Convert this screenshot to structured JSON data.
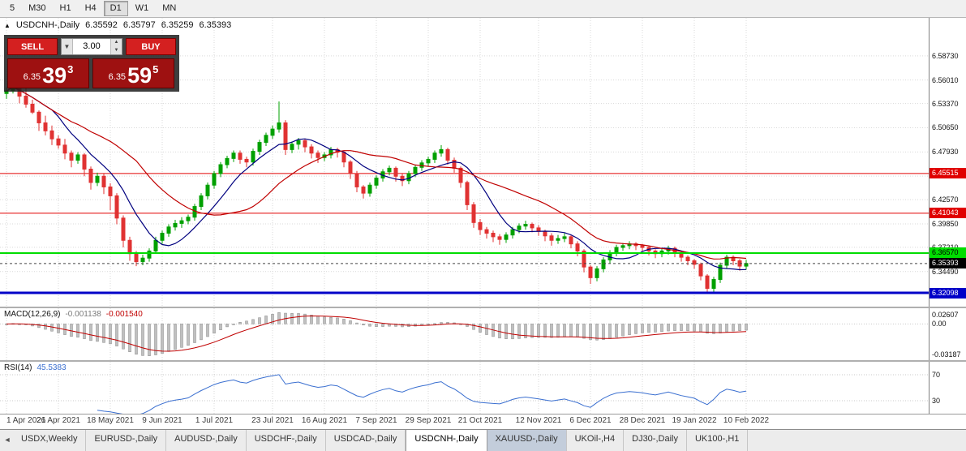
{
  "toolbar": {
    "timeframes": [
      "5",
      "M30",
      "H1",
      "H4",
      "D1",
      "W1",
      "MN"
    ],
    "active": "D1"
  },
  "icons": {
    "chart_marker": "▲",
    "dropdown_down": "▼",
    "spin_up": "▲",
    "spin_down": "▼",
    "tab_scroll_left": "◄"
  },
  "symbol_header": {
    "symbol": "USDCNH-,Daily",
    "open": "6.35592",
    "high": "6.35797",
    "low": "6.35259",
    "close": "6.35393"
  },
  "trade_panel": {
    "sell_label": "SELL",
    "buy_label": "BUY",
    "volume": "3.00",
    "bid_prefix": "6.35",
    "bid_main": "39",
    "bid_sup": "3",
    "ask_prefix": "6.35",
    "ask_main": "59",
    "ask_sup": "5"
  },
  "indicators": {
    "macd": {
      "title": "MACD(12,26,9)",
      "value_main": "-0.001138",
      "value_signal": "-0.001540",
      "axis_top": "0.02607",
      "axis_zero": "0.00",
      "axis_bottom": "-0.03187"
    },
    "rsi": {
      "title": "RSI(14)",
      "value": "45.5383",
      "level_top": "70",
      "level_bottom": "30"
    }
  },
  "tabs": {
    "active_index": 5,
    "highlighted_index": 6,
    "items": [
      {
        "label": "USDX,Weekly"
      },
      {
        "label": "EURUSD-,Daily"
      },
      {
        "label": "AUDUSD-,Daily"
      },
      {
        "label": "USDCHF-,Daily"
      },
      {
        "label": "USDCAD-,Daily"
      },
      {
        "label": "USDCNH-,Daily"
      },
      {
        "label": "XAUUSD-,Daily"
      },
      {
        "label": "UKOil-,H4"
      },
      {
        "label": "DJ30-,Daily"
      },
      {
        "label": "UK100-,H1"
      }
    ]
  },
  "chart_data": {
    "type": "candlestick",
    "symbol": "USDCNH",
    "timeframe": "Daily",
    "price_range": [
      6.3055,
      6.63
    ],
    "y_ticks": [
      "6.58730",
      "6.56010",
      "6.53370",
      "6.50650",
      "6.47930",
      "6.42570",
      "6.39850",
      "6.37210",
      "6.34490"
    ],
    "y_grid_extra": [
      6.4521
    ],
    "x_labels": [
      {
        "i": 0,
        "t": "1 Apr 2021"
      },
      {
        "i": 8,
        "t": "26 Apr 2021"
      },
      {
        "i": 16,
        "t": "18 May 2021"
      },
      {
        "i": 24,
        "t": "9 Jun 2021"
      },
      {
        "i": 32,
        "t": "1 Jul 2021"
      },
      {
        "i": 41,
        "t": "23 Jul 2021"
      },
      {
        "i": 49,
        "t": "16 Aug 2021"
      },
      {
        "i": 57,
        "t": "7 Sep 2021"
      },
      {
        "i": 65,
        "t": "29 Sep 2021"
      },
      {
        "i": 73,
        "t": "21 Oct 2021"
      },
      {
        "i": 82,
        "t": "12 Nov 2021"
      },
      {
        "i": 90,
        "t": "6 Dec 2021"
      },
      {
        "i": 98,
        "t": "28 Dec 2021"
      },
      {
        "i": 106,
        "t": "19 Jan 2022"
      },
      {
        "i": 114,
        "t": "10 Feb 2022"
      }
    ],
    "hlines": [
      {
        "value": 6.45515,
        "label": "6.45515",
        "color": "#e00000",
        "width": 1,
        "badge_bg": "#e00000",
        "badge_fg": "#ffffff"
      },
      {
        "value": 6.41043,
        "label": "6.41043",
        "color": "#e00000",
        "width": 1,
        "badge_bg": "#e00000",
        "badge_fg": "#ffffff"
      },
      {
        "value": 6.3657,
        "label": "6.36570",
        "color": "#00dd00",
        "width": 2,
        "badge_bg": "#00dd00",
        "badge_fg": "#000000"
      },
      {
        "value": 6.32098,
        "label": "6.32098",
        "color": "#0000c8",
        "width": 3,
        "badge_bg": "#0000c8",
        "badge_fg": "#ffffff"
      }
    ],
    "current_price": {
      "value": 6.35393,
      "label": "6.35393",
      "badge_bg": "#000000",
      "badge_fg": "#ffffff"
    },
    "ma_lines": [
      {
        "period": 8,
        "color": "#00007f"
      },
      {
        "period": 21,
        "color": "#c00000"
      }
    ],
    "indicators": {
      "macd": {
        "fast": 12,
        "slow": 26,
        "signal": 9
      },
      "rsi": {
        "period": 14,
        "levels": [
          70,
          30
        ]
      }
    },
    "colors": {
      "up": "#00a000",
      "down": "#e03232",
      "grid": "#d9d9d9",
      "macd_hist": "#c0c0c0",
      "macd_hist_stroke": "#8a8a8a",
      "macd_signal": "#c00000",
      "rsi": "#3a6fd0"
    },
    "candles": [
      [
        6.545,
        6.552,
        6.539,
        6.548
      ],
      [
        6.548,
        6.563,
        6.545,
        6.556
      ],
      [
        6.556,
        6.559,
        6.534,
        6.542
      ],
      [
        6.542,
        6.551,
        6.529,
        6.533
      ],
      [
        6.533,
        6.538,
        6.522,
        6.524
      ],
      [
        6.524,
        6.526,
        6.503,
        6.512
      ],
      [
        6.512,
        6.52,
        6.498,
        6.503
      ],
      [
        6.503,
        6.509,
        6.487,
        6.494
      ],
      [
        6.494,
        6.498,
        6.483,
        6.487
      ],
      [
        6.487,
        6.494,
        6.471,
        6.478
      ],
      [
        6.478,
        6.481,
        6.462,
        6.47
      ],
      [
        6.47,
        6.479,
        6.466,
        6.476
      ],
      [
        6.476,
        6.478,
        6.452,
        6.46
      ],
      [
        6.46,
        6.463,
        6.437,
        6.445
      ],
      [
        6.445,
        6.456,
        6.441,
        6.452
      ],
      [
        6.452,
        6.455,
        6.432,
        6.44
      ],
      [
        6.44,
        6.444,
        6.414,
        6.43
      ],
      [
        6.43,
        6.433,
        6.398,
        6.405
      ],
      [
        6.405,
        6.408,
        6.372,
        6.38
      ],
      [
        6.38,
        6.384,
        6.357,
        6.365
      ],
      [
        6.365,
        6.368,
        6.351,
        6.356
      ],
      [
        6.356,
        6.364,
        6.352,
        6.36
      ],
      [
        6.36,
        6.371,
        6.356,
        6.368
      ],
      [
        6.368,
        6.384,
        6.365,
        6.38
      ],
      [
        6.38,
        6.391,
        6.376,
        6.388
      ],
      [
        6.388,
        6.398,
        6.384,
        6.395
      ],
      [
        6.395,
        6.403,
        6.391,
        6.399
      ],
      [
        6.399,
        6.406,
        6.394,
        6.402
      ],
      [
        6.402,
        6.409,
        6.398,
        6.406
      ],
      [
        6.406,
        6.421,
        6.402,
        6.418
      ],
      [
        6.418,
        6.433,
        6.414,
        6.43
      ],
      [
        6.43,
        6.445,
        6.426,
        6.442
      ],
      [
        6.442,
        6.458,
        6.438,
        6.455
      ],
      [
        6.455,
        6.468,
        6.451,
        6.465
      ],
      [
        6.465,
        6.475,
        6.461,
        6.472
      ],
      [
        6.472,
        6.481,
        6.468,
        6.478
      ],
      [
        6.478,
        6.481,
        6.466,
        6.471
      ],
      [
        6.471,
        6.474,
        6.462,
        6.468
      ],
      [
        6.468,
        6.483,
        6.464,
        6.48
      ],
      [
        6.48,
        6.493,
        6.476,
        6.49
      ],
      [
        6.49,
        6.501,
        6.486,
        6.498
      ],
      [
        6.498,
        6.509,
        6.494,
        6.505
      ],
      [
        6.505,
        6.536,
        6.501,
        6.512
      ],
      [
        6.512,
        6.515,
        6.476,
        6.482
      ],
      [
        6.482,
        6.491,
        6.478,
        6.488
      ],
      [
        6.488,
        6.495,
        6.482,
        6.492
      ],
      [
        6.492,
        6.494,
        6.479,
        6.485
      ],
      [
        6.485,
        6.488,
        6.472,
        6.478
      ],
      [
        6.478,
        6.481,
        6.467,
        6.473
      ],
      [
        6.473,
        6.479,
        6.469,
        6.476
      ],
      [
        6.476,
        6.485,
        6.472,
        6.482
      ],
      [
        6.482,
        6.484,
        6.473,
        6.479
      ],
      [
        6.479,
        6.481,
        6.462,
        6.468
      ],
      [
        6.468,
        6.47,
        6.449,
        6.455
      ],
      [
        6.455,
        6.458,
        6.434,
        6.44
      ],
      [
        6.44,
        6.442,
        6.427,
        6.433
      ],
      [
        6.433,
        6.445,
        6.429,
        6.442
      ],
      [
        6.442,
        6.453,
        6.438,
        6.45
      ],
      [
        6.45,
        6.46,
        6.446,
        6.457
      ],
      [
        6.457,
        6.464,
        6.453,
        6.461
      ],
      [
        6.461,
        6.463,
        6.446,
        6.452
      ],
      [
        6.452,
        6.455,
        6.441,
        6.447
      ],
      [
        6.447,
        6.458,
        6.443,
        6.455
      ],
      [
        6.455,
        6.465,
        6.451,
        6.462
      ],
      [
        6.462,
        6.47,
        6.458,
        6.467
      ],
      [
        6.467,
        6.474,
        6.463,
        6.471
      ],
      [
        6.471,
        6.481,
        6.467,
        6.478
      ],
      [
        6.478,
        6.487,
        6.474,
        6.482
      ],
      [
        6.482,
        6.484,
        6.465,
        6.47
      ],
      [
        6.47,
        6.473,
        6.456,
        6.461
      ],
      [
        6.461,
        6.463,
        6.439,
        6.445
      ],
      [
        6.445,
        6.447,
        6.414,
        6.42
      ],
      [
        6.42,
        6.423,
        6.394,
        6.4
      ],
      [
        6.4,
        6.404,
        6.386,
        6.392
      ],
      [
        6.392,
        6.395,
        6.382,
        6.388
      ],
      [
        6.388,
        6.391,
        6.378,
        6.384
      ],
      [
        6.384,
        6.387,
        6.375,
        6.381
      ],
      [
        6.381,
        6.389,
        6.377,
        6.386
      ],
      [
        6.386,
        6.395,
        6.382,
        6.392
      ],
      [
        6.392,
        6.399,
        6.388,
        6.396
      ],
      [
        6.396,
        6.402,
        6.392,
        6.398
      ],
      [
        6.398,
        6.4,
        6.389,
        6.394
      ],
      [
        6.394,
        6.397,
        6.385,
        6.39
      ],
      [
        6.39,
        6.392,
        6.379,
        6.385
      ],
      [
        6.385,
        6.388,
        6.374,
        6.38
      ],
      [
        6.38,
        6.386,
        6.376,
        6.382
      ],
      [
        6.382,
        6.388,
        6.378,
        6.384
      ],
      [
        6.384,
        6.386,
        6.371,
        6.376
      ],
      [
        6.376,
        6.379,
        6.362,
        6.368
      ],
      [
        6.368,
        6.37,
        6.344,
        6.35
      ],
      [
        6.35,
        6.352,
        6.331,
        6.338
      ],
      [
        6.338,
        6.351,
        6.334,
        6.348
      ],
      [
        6.348,
        6.361,
        6.344,
        6.358
      ],
      [
        6.358,
        6.369,
        6.354,
        6.366
      ],
      [
        6.366,
        6.375,
        6.362,
        6.372
      ],
      [
        6.372,
        6.377,
        6.368,
        6.374
      ],
      [
        6.374,
        6.379,
        6.37,
        6.376
      ],
      [
        6.376,
        6.378,
        6.369,
        6.374
      ],
      [
        6.374,
        6.376,
        6.367,
        6.372
      ],
      [
        6.372,
        6.374,
        6.363,
        6.368
      ],
      [
        6.368,
        6.37,
        6.36,
        6.365
      ],
      [
        6.365,
        6.371,
        6.361,
        6.368
      ],
      [
        6.368,
        6.374,
        6.364,
        6.371
      ],
      [
        6.371,
        6.373,
        6.361,
        6.366
      ],
      [
        6.366,
        6.368,
        6.356,
        6.361
      ],
      [
        6.361,
        6.363,
        6.352,
        6.357
      ],
      [
        6.357,
        6.359,
        6.348,
        6.353
      ],
      [
        6.353,
        6.355,
        6.335,
        6.34
      ],
      [
        6.34,
        6.342,
        6.321,
        6.326
      ],
      [
        6.326,
        6.339,
        6.322,
        6.336
      ],
      [
        6.336,
        6.355,
        6.332,
        6.352
      ],
      [
        6.352,
        6.364,
        6.348,
        6.361
      ],
      [
        6.361,
        6.363,
        6.352,
        6.357
      ],
      [
        6.357,
        6.359,
        6.346,
        6.351
      ],
      [
        6.351,
        6.358,
        6.347,
        6.354
      ]
    ]
  }
}
